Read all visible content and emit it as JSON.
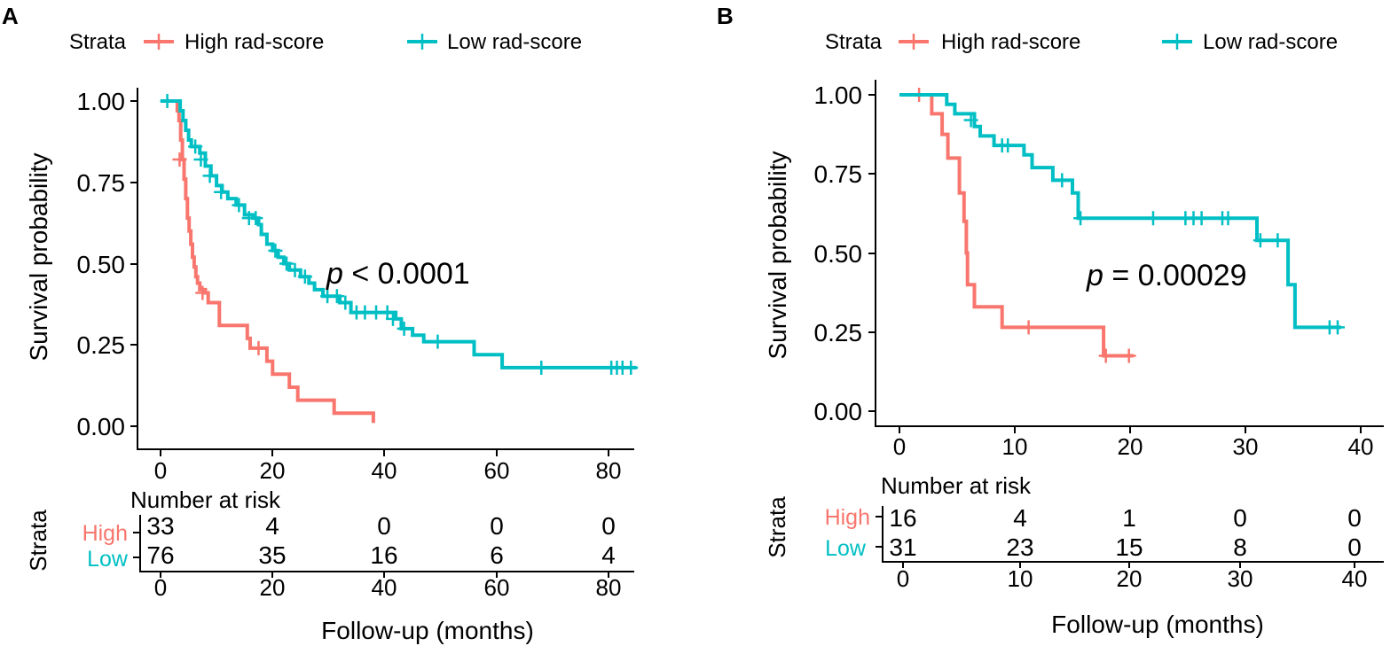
{
  "colors": {
    "high": "#F8766D",
    "low": "#00BFC4"
  },
  "chart_data": [
    {
      "type": "line",
      "panel_label": "A",
      "legend": {
        "title": "Strata",
        "items": [
          "High rad-score",
          "Low rad-score"
        ]
      },
      "ylabel": "Survival probability",
      "xlabel": "Follow-up (months)",
      "xlim": [
        0,
        85
      ],
      "ylim": [
        0,
        1
      ],
      "x_ticks": [
        0,
        20,
        40,
        60,
        80
      ],
      "x_tick_labels": [
        "0",
        "20",
        "40",
        "60",
        "80"
      ],
      "y_ticks": [
        0,
        0.25,
        0.5,
        0.75,
        1.0
      ],
      "y_tick_labels": [
        "0.00",
        "0.25",
        "0.50",
        "0.75",
        "1.00"
      ],
      "pvalue": {
        "prefix": "p",
        "text": "< 0.0001"
      },
      "series": [
        {
          "name": "High rad-score",
          "steps": [
            [
              0,
              1
            ],
            [
              3,
              1
            ],
            [
              3,
              0.97
            ],
            [
              3.3,
              0.94
            ],
            [
              3.6,
              0.88
            ],
            [
              3.9,
              0.82
            ],
            [
              4.2,
              0.76
            ],
            [
              4.5,
              0.7
            ],
            [
              4.8,
              0.64
            ],
            [
              5.1,
              0.6
            ],
            [
              5.4,
              0.56
            ],
            [
              5.7,
              0.52
            ],
            [
              6,
              0.49
            ],
            [
              6.3,
              0.46
            ],
            [
              6.6,
              0.44
            ],
            [
              7,
              0.42
            ],
            [
              8,
              0.41
            ],
            [
              8.5,
              0.38
            ],
            [
              10.5,
              0.38
            ],
            [
              10.5,
              0.31
            ],
            [
              15.5,
              0.31
            ],
            [
              15.5,
              0.27
            ],
            [
              16,
              0.24
            ],
            [
              19,
              0.24
            ],
            [
              19,
              0.2
            ],
            [
              20,
              0.16
            ],
            [
              23,
              0.16
            ],
            [
              23,
              0.12
            ],
            [
              24.5,
              0.12
            ],
            [
              24.5,
              0.08
            ],
            [
              31,
              0.08
            ],
            [
              31,
              0.04
            ],
            [
              38,
              0.04
            ],
            [
              38,
              0.01
            ]
          ],
          "censors": [
            [
              3.4,
              0.82
            ],
            [
              7.5,
              0.41
            ],
            [
              17.5,
              0.24
            ]
          ]
        },
        {
          "name": "Low rad-score",
          "steps": [
            [
              0,
              1
            ],
            [
              3,
              1
            ],
            [
              3.5,
              0.97
            ],
            [
              4,
              0.94
            ],
            [
              4.5,
              0.91
            ],
            [
              5,
              0.88
            ],
            [
              5.5,
              0.86
            ],
            [
              7,
              0.84
            ],
            [
              8,
              0.8
            ],
            [
              9,
              0.77
            ],
            [
              10,
              0.74
            ],
            [
              11,
              0.72
            ],
            [
              12,
              0.7
            ],
            [
              13.5,
              0.68
            ],
            [
              15,
              0.65
            ],
            [
              16.5,
              0.64
            ],
            [
              17.5,
              0.62
            ],
            [
              18,
              0.59
            ],
            [
              19,
              0.56
            ],
            [
              20,
              0.54
            ],
            [
              21,
              0.52
            ],
            [
              22,
              0.5
            ],
            [
              23,
              0.48
            ],
            [
              25,
              0.46
            ],
            [
              26.5,
              0.44
            ],
            [
              27.5,
              0.42
            ],
            [
              29,
              0.4
            ],
            [
              32,
              0.38
            ],
            [
              34,
              0.35
            ],
            [
              42,
              0.35
            ],
            [
              42,
              0.33
            ],
            [
              43,
              0.3
            ],
            [
              45,
              0.28
            ],
            [
              47,
              0.26
            ],
            [
              56,
              0.26
            ],
            [
              56,
              0.22
            ],
            [
              61,
              0.22
            ],
            [
              61,
              0.18
            ],
            [
              85,
              0.18
            ]
          ],
          "censors": [
            [
              1.2,
              1.0
            ],
            [
              6.2,
              0.86
            ],
            [
              7.2,
              0.82
            ],
            [
              8.8,
              0.77
            ],
            [
              10.8,
              0.72
            ],
            [
              14,
              0.68
            ],
            [
              15.8,
              0.64
            ],
            [
              17,
              0.64
            ],
            [
              20.5,
              0.54
            ],
            [
              22.5,
              0.5
            ],
            [
              24,
              0.48
            ],
            [
              25.8,
              0.46
            ],
            [
              29.8,
              0.4
            ],
            [
              31.5,
              0.4
            ],
            [
              33,
              0.38
            ],
            [
              35,
              0.35
            ],
            [
              36.5,
              0.35
            ],
            [
              38.5,
              0.35
            ],
            [
              40.5,
              0.35
            ],
            [
              41.5,
              0.33
            ],
            [
              43.5,
              0.3
            ],
            [
              49.5,
              0.26
            ],
            [
              68,
              0.18
            ],
            [
              80.5,
              0.18
            ],
            [
              81.5,
              0.18
            ],
            [
              82.5,
              0.18
            ],
            [
              84,
              0.18
            ]
          ]
        }
      ],
      "risk_table": {
        "title": "Number at risk",
        "ylabel": "Strata",
        "rows": [
          {
            "label": "High",
            "values": [
              "33",
              "4",
              "0",
              "0",
              "0"
            ]
          },
          {
            "label": "Low",
            "values": [
              "76",
              "35",
              "16",
              "6",
              "4"
            ]
          }
        ],
        "x_ticks": [
          0,
          20,
          40,
          60,
          80
        ],
        "x_tick_labels": [
          "0",
          "20",
          "40",
          "60",
          "80"
        ]
      }
    },
    {
      "type": "line",
      "panel_label": "B",
      "legend": {
        "title": "Strata",
        "items": [
          "High rad-score",
          "Low rad-score"
        ]
      },
      "ylabel": "Survival probability",
      "xlabel": "Follow-up (months)",
      "xlim": [
        0,
        40
      ],
      "ylim": [
        0,
        1
      ],
      "x_ticks": [
        0,
        10,
        20,
        30,
        40
      ],
      "x_tick_labels": [
        "0",
        "10",
        "20",
        "30",
        "40"
      ],
      "y_ticks": [
        0,
        0.25,
        0.5,
        0.75,
        1.0
      ],
      "y_tick_labels": [
        "0.00",
        "0.25",
        "0.50",
        "0.75",
        "1.00"
      ],
      "pvalue": {
        "prefix": "p",
        "text": "= 0.00029"
      },
      "series": [
        {
          "name": "High rad-score",
          "steps": [
            [
              0,
              1
            ],
            [
              2.8,
              1
            ],
            [
              2.8,
              0.94
            ],
            [
              3.7,
              0.94
            ],
            [
              3.7,
              0.875
            ],
            [
              4.2,
              0.875
            ],
            [
              4.2,
              0.8
            ],
            [
              5.2,
              0.8
            ],
            [
              5.2,
              0.69
            ],
            [
              5.6,
              0.69
            ],
            [
              5.6,
              0.6
            ],
            [
              5.8,
              0.6
            ],
            [
              5.8,
              0.5
            ],
            [
              5.9,
              0.5
            ],
            [
              5.9,
              0.4
            ],
            [
              6.5,
              0.4
            ],
            [
              6.5,
              0.33
            ],
            [
              8.9,
              0.33
            ],
            [
              8.9,
              0.265
            ],
            [
              17.7,
              0.265
            ],
            [
              17.7,
              0.175
            ],
            [
              20.3,
              0.175
            ]
          ],
          "censors": [
            [
              1.7,
              1.0
            ],
            [
              11.2,
              0.265
            ],
            [
              17.9,
              0.175
            ],
            [
              19.9,
              0.175
            ]
          ]
        },
        {
          "name": "Low rad-score",
          "steps": [
            [
              0,
              1
            ],
            [
              4.1,
              1
            ],
            [
              4.1,
              0.97
            ],
            [
              4.8,
              0.97
            ],
            [
              4.8,
              0.94
            ],
            [
              6.5,
              0.94
            ],
            [
              6.5,
              0.9
            ],
            [
              7,
              0.9
            ],
            [
              7,
              0.87
            ],
            [
              8.2,
              0.87
            ],
            [
              8.2,
              0.84
            ],
            [
              10.8,
              0.84
            ],
            [
              10.8,
              0.81
            ],
            [
              11.5,
              0.81
            ],
            [
              11.5,
              0.77
            ],
            [
              13.3,
              0.77
            ],
            [
              13.3,
              0.73
            ],
            [
              15,
              0.73
            ],
            [
              15,
              0.69
            ],
            [
              15.5,
              0.69
            ],
            [
              15.5,
              0.61
            ],
            [
              31,
              0.61
            ],
            [
              31,
              0.54
            ],
            [
              33.7,
              0.54
            ],
            [
              33.7,
              0.4
            ],
            [
              34.3,
              0.4
            ],
            [
              34.3,
              0.265
            ],
            [
              38.3,
              0.265
            ]
          ],
          "censors": [
            [
              6.2,
              0.92
            ],
            [
              8.9,
              0.84
            ],
            [
              9.4,
              0.84
            ],
            [
              14.1,
              0.73
            ],
            [
              15.7,
              0.61
            ],
            [
              22,
              0.61
            ],
            [
              24.8,
              0.61
            ],
            [
              25.5,
              0.61
            ],
            [
              26.2,
              0.61
            ],
            [
              28,
              0.61
            ],
            [
              28.5,
              0.61
            ],
            [
              31.3,
              0.54
            ],
            [
              32.8,
              0.54
            ],
            [
              37.3,
              0.265
            ],
            [
              38,
              0.265
            ]
          ]
        }
      ],
      "risk_table": {
        "title": "Number at risk",
        "ylabel": "Strata",
        "rows": [
          {
            "label": "High",
            "values": [
              "16",
              "4",
              "1",
              "0",
              "0"
            ]
          },
          {
            "label": "Low",
            "values": [
              "31",
              "23",
              "15",
              "8",
              "0"
            ]
          }
        ],
        "x_ticks": [
          0,
          10,
          20,
          30,
          40
        ],
        "x_tick_labels": [
          "0",
          "10",
          "20",
          "30",
          "40"
        ]
      }
    }
  ]
}
